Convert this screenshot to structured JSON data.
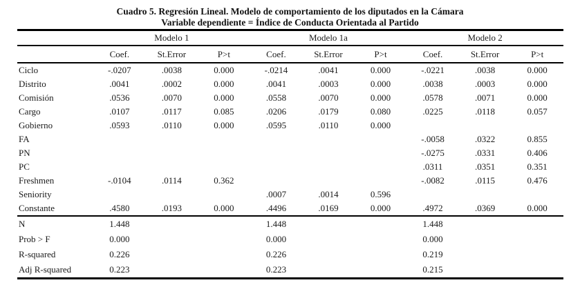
{
  "title": {
    "line1": "Cuadro 5. Regresión Lineal. Modelo de comportamiento de los diputados en la Cámara",
    "line2": "Variable dependiente = Índice de Conducta Orientada al Partido"
  },
  "table": {
    "models": [
      "Modelo 1",
      "Modelo 1a",
      "Modelo 2"
    ],
    "subheaders": [
      "Coef.",
      "St.Error",
      "P>t"
    ],
    "rows": [
      {
        "label": "Ciclo",
        "cells": [
          "-.0207",
          ".0038",
          "0.000",
          "-.0214",
          ".0041",
          "0.000",
          "-.0221",
          ".0038",
          "0.000"
        ]
      },
      {
        "label": "Distrito",
        "cells": [
          ".0041",
          ".0002",
          "0.000",
          ".0041",
          ".0003",
          "0.000",
          ".0038",
          ".0003",
          "0.000"
        ]
      },
      {
        "label": "Comisión",
        "cells": [
          ".0536",
          ".0070",
          "0.000",
          ".0558",
          ".0070",
          "0.000",
          ".0578",
          ".0071",
          "0.000"
        ]
      },
      {
        "label": "Cargo",
        "cells": [
          ".0107",
          ".0117",
          "0.085",
          ".0206",
          ".0179",
          "0.080",
          ".0225",
          ".0118",
          "0.057"
        ]
      },
      {
        "label": "Gobierno",
        "cells": [
          ".0593",
          ".0110",
          "0.000",
          ".0595",
          ".0110",
          "0.000",
          "",
          "",
          ""
        ]
      },
      {
        "label": "FA",
        "cells": [
          "",
          "",
          "",
          "",
          "",
          "",
          "-.0058",
          ".0322",
          "0.855"
        ]
      },
      {
        "label": "PN",
        "cells": [
          "",
          "",
          "",
          "",
          "",
          "",
          "-.0275",
          ".0331",
          "0.406"
        ]
      },
      {
        "label": "PC",
        "cells": [
          "",
          "",
          "",
          "",
          "",
          "",
          ".0311",
          ".0351",
          "0.351"
        ]
      },
      {
        "label": "Freshmen",
        "cells": [
          "-.0104",
          ".0114",
          "0.362",
          "",
          "",
          "",
          "-.0082",
          ".0115",
          "0.476"
        ]
      },
      {
        "label": "Seniority",
        "cells": [
          "",
          "",
          "",
          ".0007",
          ".0014",
          "0.596",
          "",
          "",
          ""
        ]
      },
      {
        "label": "Constante",
        "cells": [
          ".4580",
          ".0193",
          "0.000",
          ".4496",
          ".0169",
          "0.000",
          ".4972",
          ".0369",
          "0.000"
        ]
      }
    ],
    "stats": [
      {
        "label": "N",
        "cells": [
          "1.448",
          "",
          "",
          "1.448",
          "",
          "",
          "1.448",
          "",
          ""
        ]
      },
      {
        "label": "Prob > F",
        "cells": [
          "0.000",
          "",
          "",
          "0.000",
          "",
          "",
          "0.000",
          "",
          ""
        ]
      },
      {
        "label": "R-squared",
        "cells": [
          "0.226",
          "",
          "",
          "0.226",
          "",
          "",
          "0.219",
          "",
          ""
        ]
      },
      {
        "label": "Adj R-squared",
        "cells": [
          "0.223",
          "",
          "",
          "0.223",
          "",
          "",
          "0.215",
          "",
          ""
        ]
      }
    ]
  },
  "colors": {
    "text": "#1a1a1a",
    "rule": "#000000",
    "background": "#ffffff"
  }
}
